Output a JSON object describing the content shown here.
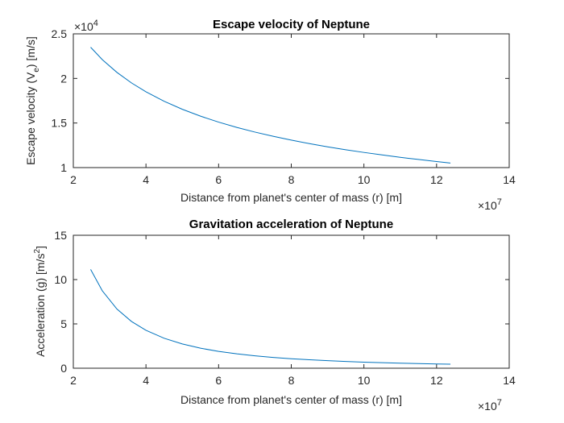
{
  "colors": {
    "line": "#0072BD",
    "axes": "#262626",
    "background": "#ffffff"
  },
  "chart_data": [
    {
      "type": "line",
      "title": "Escape velocity of Neptune",
      "xlabel": "Distance from planet's center of mass (r) [m]",
      "ylabel_parts": {
        "pre": "Escape velocity (V",
        "sub": "e",
        "post": ") [m/s]"
      },
      "xlim": [
        20000000.0,
        140000000.0
      ],
      "ylim": [
        10000,
        25000
      ],
      "xticks": [
        20000000.0,
        40000000.0,
        60000000.0,
        80000000.0,
        100000000.0,
        120000000.0,
        140000000.0
      ],
      "xtick_labels": [
        "2",
        "4",
        "6",
        "8",
        "10",
        "12",
        "14"
      ],
      "yticks": [
        10000,
        15000,
        20000,
        25000
      ],
      "ytick_labels": [
        "1",
        "1.5",
        "2",
        "2.5"
      ],
      "x_exponent": {
        "base": "×10",
        "power": "7"
      },
      "y_exponent": {
        "base": "×10",
        "power": "4"
      },
      "grid": false,
      "series": [
        {
          "x": [
            24764000.0,
            28000000.0,
            32000000.0,
            36000000.0,
            40000000.0,
            45000000.0,
            50000000.0,
            55000000.0,
            60000000.0,
            65000000.0,
            70000000.0,
            75000000.0,
            80000000.0,
            85000000.0,
            90000000.0,
            95000000.0,
            100000000.0,
            105000000.0,
            110000000.0,
            115000000.0,
            120000000.0,
            123820000.0
          ],
          "y": [
            23500,
            22100,
            20680,
            19500,
            18500,
            17440,
            16540,
            15770,
            15100,
            14510,
            13980,
            13510,
            13080,
            12690,
            12330,
            12000,
            11700,
            11420,
            11150,
            10910,
            10680,
            10510
          ]
        }
      ]
    },
    {
      "type": "line",
      "title": "Gravitation acceleration of Neptune",
      "xlabel": "Distance from planet's center of mass (r) [m]",
      "ylabel_parts": {
        "pre": "Acceleration (g) [m/s",
        "sup": "2",
        "post": "]"
      },
      "xlim": [
        20000000.0,
        140000000.0
      ],
      "ylim": [
        0,
        15
      ],
      "xticks": [
        20000000.0,
        40000000.0,
        60000000.0,
        80000000.0,
        100000000.0,
        120000000.0,
        140000000.0
      ],
      "xtick_labels": [
        "2",
        "4",
        "6",
        "8",
        "10",
        "12",
        "14"
      ],
      "yticks": [
        0,
        5,
        10,
        15
      ],
      "ytick_labels": [
        "0",
        "5",
        "10",
        "15"
      ],
      "x_exponent": {
        "base": "×10",
        "power": "7"
      },
      "grid": false,
      "series": [
        {
          "x": [
            24764000.0,
            28000000.0,
            32000000.0,
            36000000.0,
            40000000.0,
            45000000.0,
            50000000.0,
            55000000.0,
            60000000.0,
            65000000.0,
            70000000.0,
            75000000.0,
            80000000.0,
            85000000.0,
            90000000.0,
            95000000.0,
            100000000.0,
            105000000.0,
            110000000.0,
            115000000.0,
            120000000.0,
            123820000.0
          ],
          "y": [
            11.15,
            8.72,
            6.68,
            5.28,
            4.28,
            3.38,
            2.74,
            2.26,
            1.9,
            1.62,
            1.4,
            1.22,
            1.07,
            0.95,
            0.85,
            0.76,
            0.68,
            0.62,
            0.57,
            0.52,
            0.48,
            0.45
          ]
        }
      ]
    }
  ]
}
